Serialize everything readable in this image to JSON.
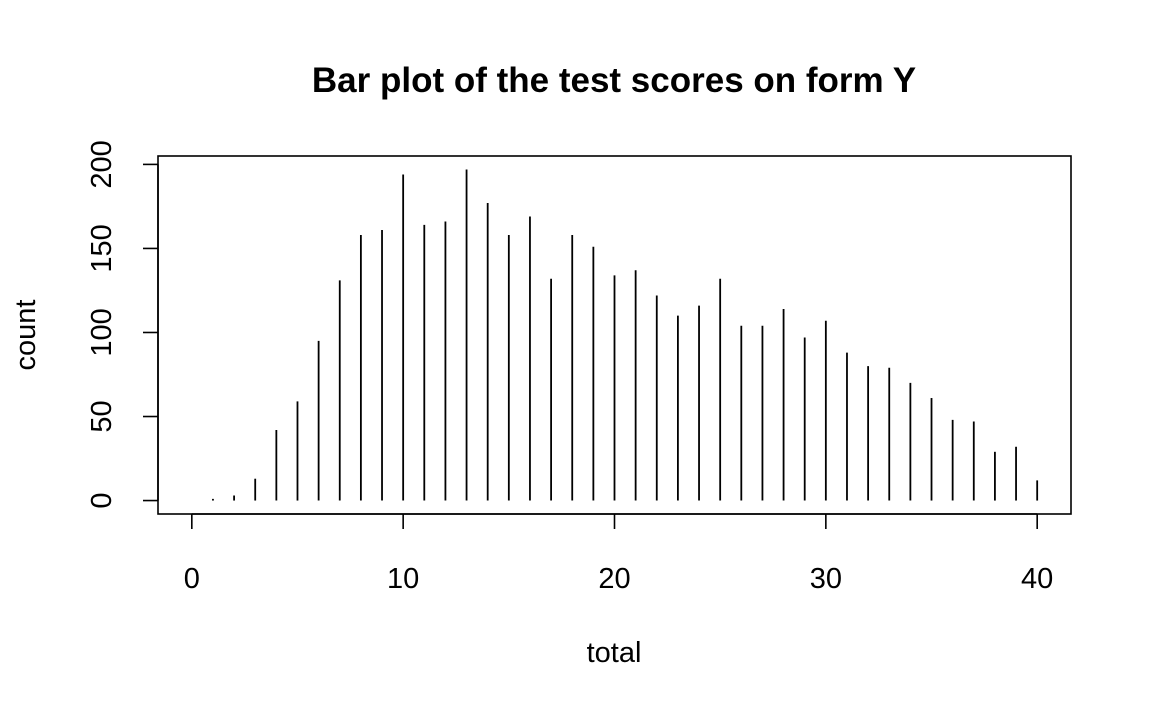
{
  "chart_data": {
    "type": "bar",
    "title": "Bar plot of the test scores on form Y",
    "xlabel": "total",
    "ylabel": "count",
    "x": [
      0,
      1,
      2,
      3,
      4,
      5,
      6,
      7,
      8,
      9,
      10,
      11,
      12,
      13,
      14,
      15,
      16,
      17,
      18,
      19,
      20,
      21,
      22,
      23,
      24,
      25,
      26,
      27,
      28,
      29,
      30,
      31,
      32,
      33,
      34,
      35,
      36,
      37,
      38,
      39,
      40
    ],
    "values": [
      0,
      1,
      3,
      13,
      42,
      59,
      95,
      131,
      158,
      161,
      194,
      164,
      166,
      197,
      177,
      158,
      169,
      132,
      158,
      151,
      134,
      137,
      122,
      110,
      116,
      132,
      104,
      104,
      114,
      97,
      107,
      88,
      80,
      79,
      70,
      61,
      48,
      47,
      29,
      32,
      12
    ],
    "xlim": [
      -1.6,
      41.6
    ],
    "ylim": [
      -8,
      205
    ],
    "xticks": [
      0,
      10,
      20,
      30,
      40
    ],
    "yticks": [
      0,
      50,
      100,
      150,
      200
    ],
    "grid": false,
    "legend": false,
    "bar_style": "vertical lines (type h)",
    "color": "#000000"
  }
}
